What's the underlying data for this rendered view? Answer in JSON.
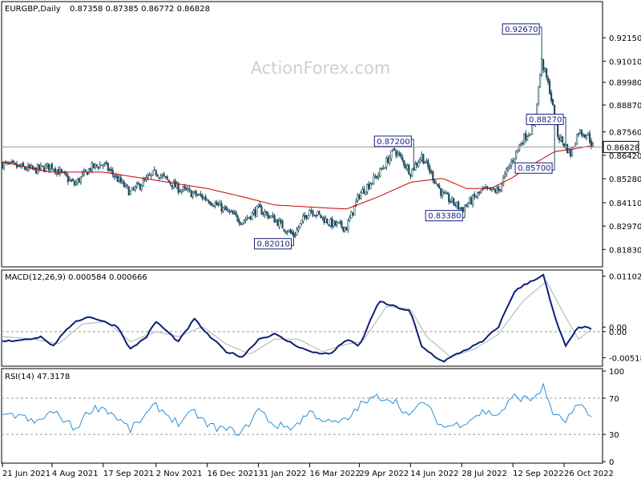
{
  "header": {
    "symbol_label": "EURGBP,Daily",
    "ohlc_label": "0.87358 0.87385 0.86772 0.86828"
  },
  "watermark": "ActionForex.com",
  "colors": {
    "background": "#ffffff",
    "frame": "#000000",
    "candles": "#1f4e5f",
    "moving_average": "#cc0000",
    "macd_line": "#0a1f7a",
    "macd_signal": "#b0b0b0",
    "rsi_line": "#2b8fd6",
    "level_line": "#999999",
    "label_border": "#1a1f7a",
    "label_text": "#1a1f7a"
  },
  "chart_data": [
    {
      "type": "candlestick",
      "title": "EURGBP,Daily",
      "ylim": [
        0.811,
        0.936
      ],
      "y_ticks": [
        "0.92150",
        "0.91010",
        "0.89980",
        "0.88870",
        "0.87560",
        "0.86420",
        "0.85280",
        "0.84110",
        "0.82970",
        "0.81830"
      ],
      "y_tick_values": [
        0.9215,
        0.9101,
        0.8998,
        0.8887,
        0.8756,
        0.8642,
        0.8528,
        0.8411,
        0.8297,
        0.8183
      ],
      "current_price": "0.86828",
      "current_price_value": 0.86828,
      "x_ticks": [
        "21 Jun 2021",
        "4 Aug 2021",
        "17 Sep 2021",
        "2 Nov 2021",
        "16 Dec 2021",
        "31 Jan 2022",
        "16 Mar 2022",
        "29 Apr 2022",
        "14 Jun 2022",
        "28 Jul 2022",
        "12 Sep 2022",
        "26 Oct 2022"
      ],
      "x_tick_index": [
        0,
        31,
        63,
        96,
        128,
        160,
        192,
        223,
        255,
        287,
        319,
        351
      ],
      "n_bars": 370,
      "close_path": [
        [
          0,
          0.86
        ],
        [
          20,
          0.857
        ],
        [
          31,
          0.859
        ],
        [
          45,
          0.85
        ],
        [
          55,
          0.858
        ],
        [
          63,
          0.86
        ],
        [
          80,
          0.846
        ],
        [
          96,
          0.856
        ],
        [
          110,
          0.848
        ],
        [
          128,
          0.843
        ],
        [
          140,
          0.837
        ],
        [
          150,
          0.832
        ],
        [
          160,
          0.838
        ],
        [
          170,
          0.833
        ],
        [
          182,
          0.825
        ],
        [
          192,
          0.838
        ],
        [
          205,
          0.831
        ],
        [
          215,
          0.829
        ],
        [
          223,
          0.845
        ],
        [
          235,
          0.855
        ],
        [
          245,
          0.867
        ],
        [
          255,
          0.856
        ],
        [
          262,
          0.864
        ],
        [
          275,
          0.845
        ],
        [
          287,
          0.838
        ],
        [
          300,
          0.847
        ],
        [
          310,
          0.847
        ],
        [
          315,
          0.856
        ],
        [
          325,
          0.872
        ],
        [
          332,
          0.878
        ],
        [
          337,
          0.91
        ],
        [
          342,
          0.896
        ],
        [
          347,
          0.874
        ],
        [
          355,
          0.865
        ],
        [
          360,
          0.876
        ],
        [
          366,
          0.874
        ],
        [
          369,
          0.8683
        ]
      ],
      "moving_average_path": [
        [
          0,
          0.861
        ],
        [
          30,
          0.856
        ],
        [
          63,
          0.856
        ],
        [
          96,
          0.852
        ],
        [
          128,
          0.848
        ],
        [
          150,
          0.844
        ],
        [
          170,
          0.84
        ],
        [
          192,
          0.839
        ],
        [
          215,
          0.838
        ],
        [
          235,
          0.844
        ],
        [
          255,
          0.851
        ],
        [
          275,
          0.853
        ],
        [
          290,
          0.848
        ],
        [
          305,
          0.848
        ],
        [
          318,
          0.853
        ],
        [
          332,
          0.86
        ],
        [
          345,
          0.866
        ],
        [
          355,
          0.867
        ],
        [
          369,
          0.869
        ]
      ],
      "annotations": [
        {
          "label": "0.92670",
          "price": 0.9267,
          "bar": 337
        },
        {
          "label": "0.88270",
          "price": 0.8827,
          "bar": 352
        },
        {
          "label": "0.87200",
          "price": 0.872,
          "bar": 257
        },
        {
          "label": "0.85700",
          "price": 0.857,
          "bar": 345
        },
        {
          "label": "0.83380",
          "price": 0.8338,
          "bar": 289
        },
        {
          "label": "0.82010",
          "price": 0.8201,
          "bar": 182
        }
      ]
    },
    {
      "type": "line",
      "title": "MACD(12,26,9) 0.000584 0.000666",
      "ylim": [
        -0.0064,
        0.0116
      ],
      "y_ticks": [
        "0.011023",
        "0.00",
        "0.00",
        "-0.005182"
      ],
      "y_tick_values": [
        0.011023,
        0.0009,
        0.0,
        -0.005182
      ],
      "series": [
        {
          "role": "macd",
          "path": [
            [
              0,
              -0.002
            ],
            [
              15,
              -0.0015
            ],
            [
              25,
              -0.001
            ],
            [
              31,
              -0.003
            ],
            [
              45,
              0.002
            ],
            [
              55,
              0.003
            ],
            [
              63,
              0.002
            ],
            [
              72,
              0.001
            ],
            [
              80,
              -0.0035
            ],
            [
              90,
              -0.001
            ],
            [
              96,
              0.002
            ],
            [
              110,
              -0.002
            ],
            [
              120,
              0.0025
            ],
            [
              128,
              -0.0005
            ],
            [
              140,
              -0.004
            ],
            [
              150,
              -0.005
            ],
            [
              160,
              -0.0015
            ],
            [
              170,
              -0.0005
            ],
            [
              182,
              -0.0025
            ],
            [
              192,
              -0.004
            ],
            [
              205,
              -0.0045
            ],
            [
              215,
              -0.0015
            ],
            [
              223,
              -0.003
            ],
            [
              235,
              0.006
            ],
            [
              245,
              0.005
            ],
            [
              255,
              0.004
            ],
            [
              262,
              -0.003
            ],
            [
              275,
              -0.006
            ],
            [
              287,
              -0.004
            ],
            [
              300,
              -0.002
            ],
            [
              310,
              0.001
            ],
            [
              320,
              0.008
            ],
            [
              330,
              0.01
            ],
            [
              338,
              0.0112
            ],
            [
              345,
              0.003
            ],
            [
              352,
              -0.003
            ],
            [
              360,
              0.001
            ],
            [
              369,
              0.0006
            ]
          ]
        },
        {
          "role": "signal",
          "path": [
            [
              0,
              -0.001
            ],
            [
              20,
              -0.0015
            ],
            [
              35,
              -0.0025
            ],
            [
              50,
              0.0015
            ],
            [
              65,
              0.002
            ],
            [
              80,
              -0.002
            ],
            [
              96,
              0.0
            ],
            [
              110,
              -0.001
            ],
            [
              125,
              0.001
            ],
            [
              140,
              -0.0025
            ],
            [
              155,
              -0.0045
            ],
            [
              170,
              -0.0015
            ],
            [
              185,
              -0.0015
            ],
            [
              200,
              -0.004
            ],
            [
              215,
              -0.0025
            ],
            [
              225,
              -0.002
            ],
            [
              240,
              0.005
            ],
            [
              255,
              0.0045
            ],
            [
              265,
              -0.001
            ],
            [
              280,
              -0.005
            ],
            [
              295,
              -0.0035
            ],
            [
              310,
              -0.0005
            ],
            [
              325,
              0.006
            ],
            [
              340,
              0.01
            ],
            [
              350,
              0.004
            ],
            [
              360,
              -0.0015
            ],
            [
              369,
              0.0007
            ]
          ]
        }
      ]
    },
    {
      "type": "line",
      "title": "RSI(14) 47.3178",
      "ylim": [
        0,
        100
      ],
      "y_ticks": [
        "100",
        "70",
        "30",
        "0"
      ],
      "y_tick_values": [
        100,
        70,
        30,
        0
      ],
      "series": [
        {
          "role": "rsi",
          "path": [
            [
              0,
              48
            ],
            [
              10,
              52
            ],
            [
              20,
              42
            ],
            [
              31,
              55
            ],
            [
              40,
              45
            ],
            [
              45,
              35
            ],
            [
              55,
              58
            ],
            [
              63,
              60
            ],
            [
              72,
              48
            ],
            [
              80,
              35
            ],
            [
              96,
              62
            ],
            [
              110,
              42
            ],
            [
              120,
              55
            ],
            [
              128,
              40
            ],
            [
              140,
              35
            ],
            [
              150,
              32
            ],
            [
              160,
              58
            ],
            [
              170,
              40
            ],
            [
              182,
              38
            ],
            [
              192,
              55
            ],
            [
              205,
              42
            ],
            [
              215,
              45
            ],
            [
              223,
              62
            ],
            [
              235,
              72
            ],
            [
              245,
              68
            ],
            [
              255,
              48
            ],
            [
              262,
              68
            ],
            [
              275,
              38
            ],
            [
              287,
              42
            ],
            [
              300,
              55
            ],
            [
              310,
              52
            ],
            [
              320,
              72
            ],
            [
              330,
              68
            ],
            [
              338,
              82
            ],
            [
              345,
              50
            ],
            [
              352,
              45
            ],
            [
              360,
              62
            ],
            [
              369,
              47
            ]
          ]
        }
      ]
    }
  ]
}
